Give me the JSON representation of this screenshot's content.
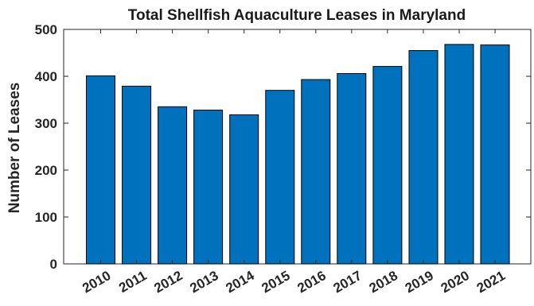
{
  "chart_data": {
    "type": "bar",
    "title": "Total Shellfish Aquaculture Leases in Maryland",
    "xlabel": "",
    "ylabel": "Number of Leases",
    "categories": [
      "2010",
      "2011",
      "2012",
      "2013",
      "2014",
      "2015",
      "2016",
      "2017",
      "2018",
      "2019",
      "2020",
      "2021"
    ],
    "values": [
      401,
      379,
      335,
      328,
      318,
      370,
      393,
      406,
      421,
      455,
      468,
      467
    ],
    "ylim": [
      0,
      500
    ],
    "yticks": [
      0,
      100,
      200,
      300,
      400,
      500
    ],
    "grid": false,
    "legend": "none",
    "bar_color": "#0072BD"
  }
}
